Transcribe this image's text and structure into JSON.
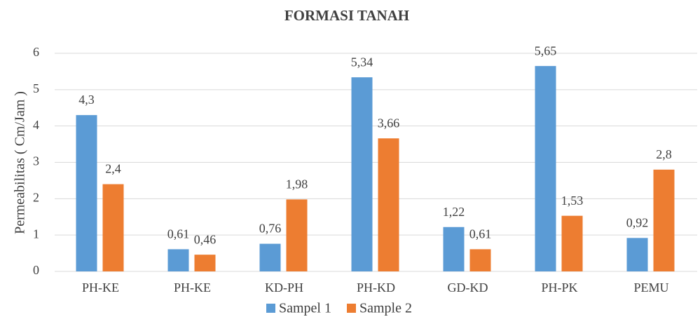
{
  "chart_data": {
    "type": "bar",
    "title": "FORMASI TANAH",
    "y_label": "Permeabilitas ( Cm/Jam )",
    "categories": [
      "PH-KE",
      "PH-KE",
      "KD-PH",
      "PH-KD",
      "GD-KD",
      "PH-PK",
      "PEMU"
    ],
    "series": [
      {
        "name": "Sampel 1",
        "color": "#5b9bd5",
        "values": [
          4.3,
          0.61,
          0.76,
          5.34,
          1.22,
          5.65,
          0.92
        ],
        "value_labels": [
          "4,3",
          "0,61",
          "0,76",
          "5,34",
          "1,22",
          "5,65",
          "0,92"
        ]
      },
      {
        "name": "Sample 2",
        "color": "#ed7d31",
        "values": [
          2.4,
          0.46,
          1.98,
          3.66,
          0.61,
          1.53,
          2.8
        ],
        "value_labels": [
          "2,4",
          "0,46",
          "1,98",
          "3,66",
          "0,61",
          "1,53",
          "2,8"
        ]
      }
    ],
    "ylim": [
      0,
      6
    ],
    "yticks": [
      0,
      1,
      2,
      3,
      4,
      5,
      6
    ],
    "grid": true,
    "legend": "bottom"
  }
}
